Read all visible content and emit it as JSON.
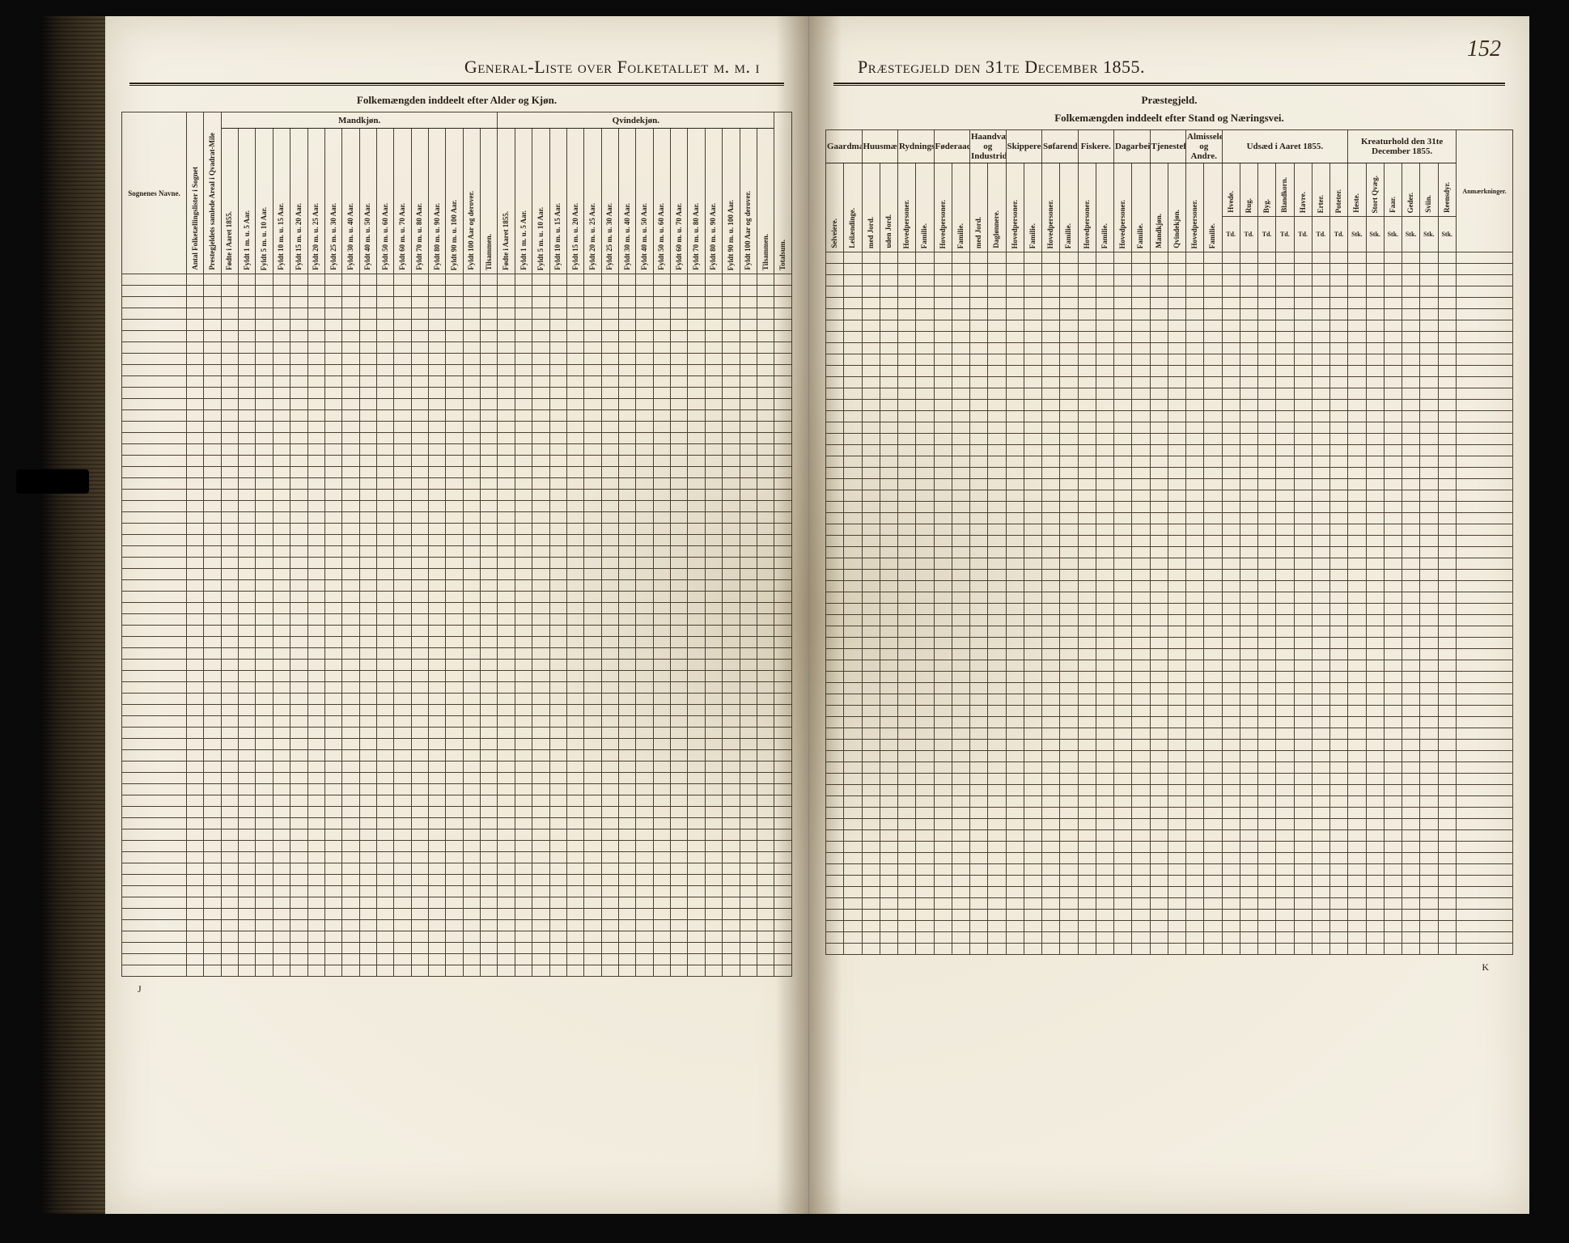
{
  "page_number": "152",
  "left_page": {
    "title": "General-Liste over Folketallet m. m. i",
    "section_label": "Folkemængden inddeelt efter Alder og Kjøn.",
    "row_header": "Sognenes Navne.",
    "col2": "Antal Folketællingslister i Sognet",
    "col3": "Prestegjeldets samlede Areal i Qvadrat-Mile",
    "group_mand": "Mandkjøn.",
    "group_quinde": "Qvindekjøn.",
    "age_cols_m": [
      "Fødte i Aaret 1855.",
      "Fyldt 1 m. u. 5 Aar.",
      "Fyldt 5 m. u. 10 Aar.",
      "Fyldt 10 m. u. 15 Aar.",
      "Fyldt 15 m. u. 20 Aar.",
      "Fyldt 20 m. u. 25 Aar.",
      "Fyldt 25 m. u. 30 Aar.",
      "Fyldt 30 m. u. 40 Aar.",
      "Fyldt 40 m. u. 50 Aar.",
      "Fyldt 50 m. u. 60 Aar.",
      "Fyldt 60 m. u. 70 Aar.",
      "Fyldt 70 m. u. 80 Aar.",
      "Fyldt 80 m. u. 90 Aar.",
      "Fyldt 90 m. u. 100 Aar.",
      "Fyldt 100 Aar og derover.",
      "Tilsammen."
    ],
    "age_cols_q": [
      "Fødte i Aaret 1855.",
      "Fyldt 1 m. u. 5 Aar.",
      "Fyldt 5 m. u. 10 Aar.",
      "Fyldt 10 m. u. 15 Aar.",
      "Fyldt 15 m. u. 20 Aar.",
      "Fyldt 20 m. u. 25 Aar.",
      "Fyldt 25 m. u. 30 Aar.",
      "Fyldt 30 m. u. 40 Aar.",
      "Fyldt 40 m. u. 50 Aar.",
      "Fyldt 50 m. u. 60 Aar.",
      "Fyldt 60 m. u. 70 Aar.",
      "Fyldt 70 m. u. 80 Aar.",
      "Fyldt 80 m. u. 90 Aar.",
      "Fyldt 90 m. u. 100 Aar.",
      "Fyldt 100 Aar og derover.",
      "Tilsammen."
    ],
    "total_col": "Totalsum.",
    "signature": "J"
  },
  "right_page": {
    "title": "Præstegjeld den 31te December 1855.",
    "section_label_top": "Præstegjeld.",
    "section_label": "Folkemængden inddeelt efter Stand og Næringsvei.",
    "groups": [
      {
        "name": "Gaardmænd.",
        "subs": [
          "Selveiere.",
          "Leilændinge."
        ]
      },
      {
        "name": "Huusmænd.",
        "subs": [
          "med Jord.",
          "uden Jord."
        ]
      },
      {
        "name": "Rydningsmænd.",
        "subs": [
          "Hovedpersoner.",
          "Familie."
        ]
      },
      {
        "name": "Føderaadsfolk.",
        "subs": [
          "Hovedpersoner.",
          "Familie."
        ]
      },
      {
        "name": "Haandværkere og Industridrivende.",
        "subs": [
          "med Jord.",
          "Daglønnere."
        ]
      },
      {
        "name": "Skippere.",
        "subs": [
          "Hovedpersoner.",
          "Familie."
        ]
      },
      {
        "name": "Søfarende.",
        "subs": [
          "Hovedpersoner.",
          "Familie."
        ]
      },
      {
        "name": "Fiskere.",
        "subs": [
          "Hovedpersoner.",
          "Familie."
        ]
      },
      {
        "name": "Dagarbeidere.",
        "subs": [
          "Hovedpersoner.",
          "Familie."
        ]
      },
      {
        "name": "Tjenestefolk.",
        "subs": [
          "Mandkjøn.",
          "Qvindekjøn."
        ]
      },
      {
        "name": "Almisselemmer og Andre.",
        "subs": [
          "Hovedpersoner.",
          "Familie."
        ]
      }
    ],
    "udsad": {
      "title": "Udsæd i Aaret 1855.",
      "cols": [
        "Hvede.",
        "Rug.",
        "Byg.",
        "Blandkorn.",
        "Havre.",
        "Erter.",
        "Poteter."
      ],
      "unit": "Td."
    },
    "kreatur": {
      "title": "Kreaturhold den 31te December 1855.",
      "cols": [
        "Heste.",
        "Stort Qvæg.",
        "Faar.",
        "Geder.",
        "Sviin.",
        "Reensdyr."
      ],
      "unit": "Stk."
    },
    "remarks": "Anmærkninger.",
    "signature": "K"
  },
  "styling": {
    "paper_color": "#f4f0e4",
    "ink_color": "#2a2218",
    "rule_color": "#4a4030",
    "background": "#0a0a0a",
    "title_fontsize": 22,
    "header_fontsize": 11,
    "cell_fontsize": 9,
    "body_rows": 62
  }
}
